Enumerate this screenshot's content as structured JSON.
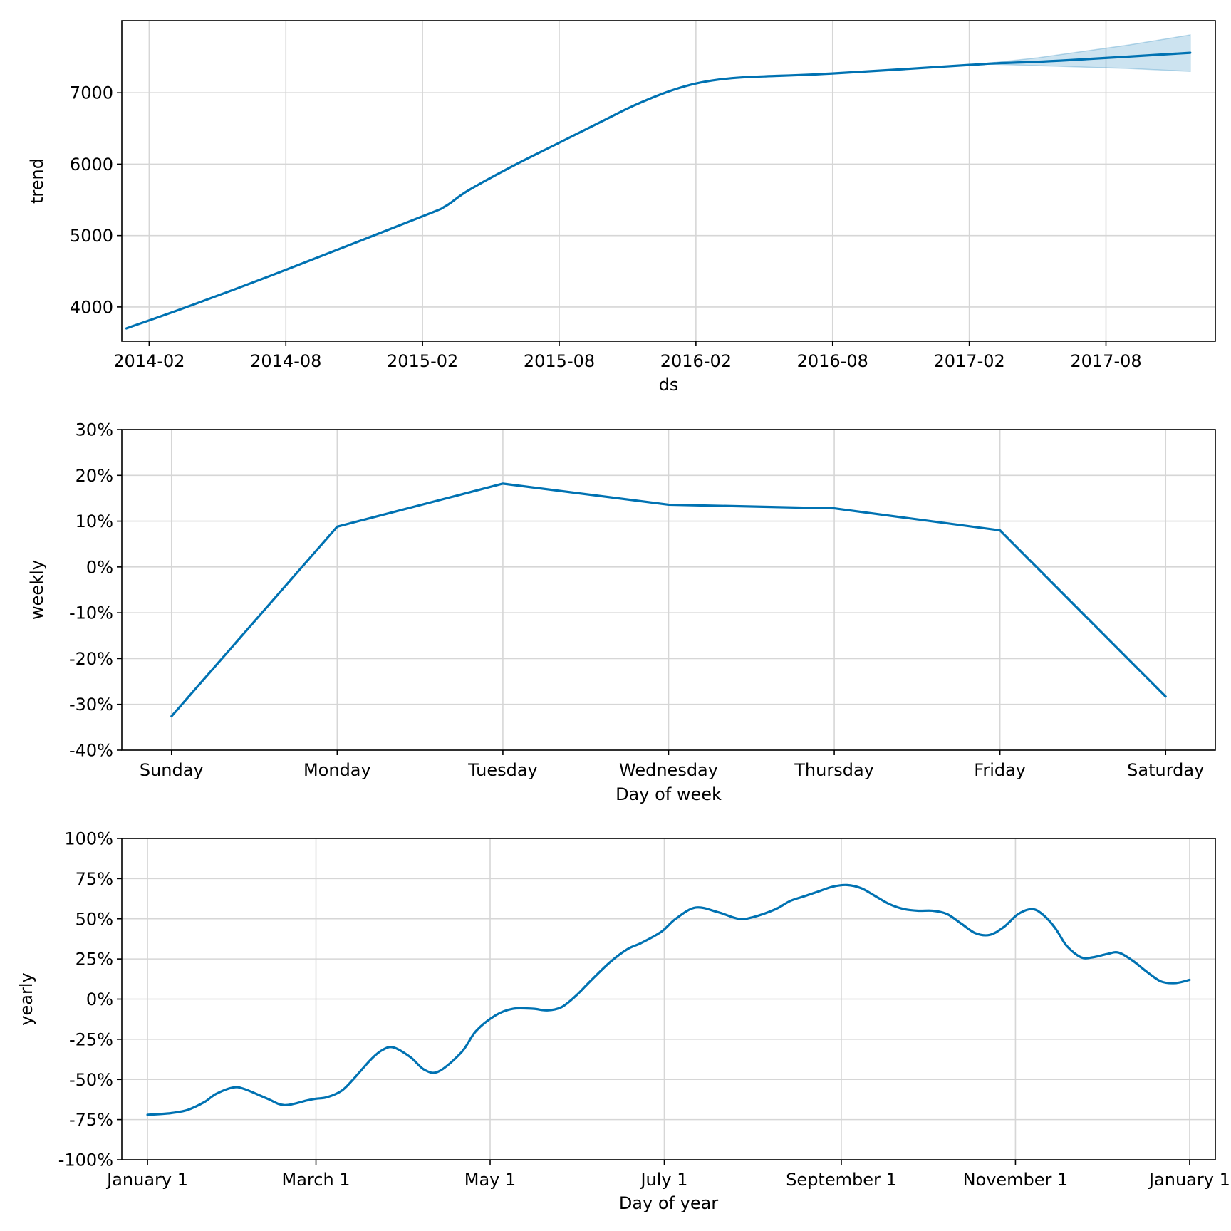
{
  "colors": {
    "line": "#0072B2",
    "band": "#0072B2",
    "grid": "#d6d6d6",
    "frame": "#000000"
  },
  "chart_data": [
    {
      "id": "trend",
      "type": "line",
      "xlabel": "ds",
      "ylabel": "trend",
      "ylim": [
        3520,
        8010
      ],
      "yticks": [
        4000,
        5000,
        6000,
        7000
      ],
      "ytick_labels": [
        "4000",
        "5000",
        "6000",
        "7000"
      ],
      "xlim": [
        -1.2,
        46.8
      ],
      "xticks": [
        0,
        6,
        12,
        18,
        24,
        30,
        36,
        42
      ],
      "xtick_labels": [
        "2014-02",
        "2014-08",
        "2015-02",
        "2015-08",
        "2016-02",
        "2016-08",
        "2017-02",
        "2017-08"
      ],
      "x_unit": "months since 2014-02",
      "series": [
        {
          "name": "trend",
          "x": [
            -1.0,
            2,
            6,
            12,
            13,
            14,
            16,
            18,
            20,
            21,
            22,
            23,
            24,
            25,
            26,
            27,
            30,
            36,
            37,
            40,
            45.7
          ],
          "values": [
            3700,
            4040,
            4520,
            5270,
            5410,
            5630,
            5980,
            6300,
            6620,
            6780,
            6920,
            7040,
            7130,
            7185,
            7215,
            7230,
            7270,
            7390,
            7410,
            7450,
            7560
          ]
        }
      ],
      "uncertainty_band": {
        "x": [
          37,
          39,
          41,
          43,
          45.7
        ],
        "upper": [
          7420,
          7490,
          7580,
          7670,
          7810
        ],
        "lower": [
          7400,
          7380,
          7360,
          7340,
          7300
        ]
      }
    },
    {
      "id": "weekly",
      "type": "line",
      "xlabel": "Day of week",
      "ylabel": "weekly",
      "categories": [
        "Sunday",
        "Monday",
        "Tuesday",
        "Wednesday",
        "Thursday",
        "Friday",
        "Saturday"
      ],
      "ylim": [
        -40,
        30
      ],
      "yticks": [
        -40,
        -30,
        -20,
        -10,
        0,
        10,
        20,
        30
      ],
      "ytick_labels": [
        "-40%",
        "-30%",
        "-20%",
        "-10%",
        "0%",
        "10%",
        "20%",
        "30%"
      ],
      "series": [
        {
          "name": "weekly",
          "values": [
            -32.6,
            8.8,
            18.2,
            13.6,
            12.8,
            8.0,
            -28.3
          ]
        }
      ]
    },
    {
      "id": "yearly",
      "type": "line",
      "xlabel": "Day of year",
      "ylabel": "yearly",
      "ylim": [
        -100,
        100
      ],
      "yticks": [
        -100,
        -75,
        -50,
        -25,
        0,
        25,
        50,
        75,
        100
      ],
      "ytick_labels": [
        "-100%",
        "-75%",
        "-50%",
        "-25%",
        "0%",
        "25%",
        "50%",
        "75%",
        "100%"
      ],
      "xlim": [
        -9,
        374
      ],
      "xticks": [
        0,
        59,
        120,
        181,
        243,
        304,
        365
      ],
      "xtick_labels": [
        "January 1",
        "March 1",
        "May 1",
        "July 1",
        "September 1",
        "November 1",
        "January 1"
      ],
      "series": [
        {
          "name": "yearly",
          "x": [
            0,
            8,
            14,
            20,
            24,
            30,
            34,
            42,
            48,
            56,
            59,
            63,
            68,
            72,
            78,
            82,
            86,
            92,
            97,
            102,
            110,
            115,
            122,
            128,
            135,
            140,
            145,
            150,
            155,
            162,
            168,
            173,
            180,
            185,
            192,
            200,
            207,
            212,
            220,
            225,
            230,
            235,
            240,
            245,
            250,
            255,
            260,
            265,
            270,
            275,
            280,
            285,
            290,
            295,
            300,
            305,
            310,
            314,
            318,
            322,
            327,
            331,
            336,
            340,
            345,
            350,
            355,
            360,
            365
          ],
          "values": [
            -72,
            -71,
            -69,
            -64,
            -59,
            -55,
            -56,
            -62,
            -66,
            -63,
            -62,
            -61,
            -57,
            -50,
            -38,
            -32,
            -30,
            -36,
            -44,
            -45,
            -33,
            -20,
            -10,
            -6,
            -6,
            -7,
            -5,
            2,
            11,
            23,
            31,
            35,
            42,
            50,
            57,
            54,
            50,
            51,
            56,
            61,
            64,
            67,
            70,
            71,
            69,
            64,
            59,
            56,
            55,
            55,
            53,
            47,
            41,
            40,
            45,
            53,
            56,
            52,
            44,
            33,
            26,
            26,
            28,
            29,
            24,
            17,
            11,
            10,
            12
          ]
        }
      ]
    }
  ]
}
